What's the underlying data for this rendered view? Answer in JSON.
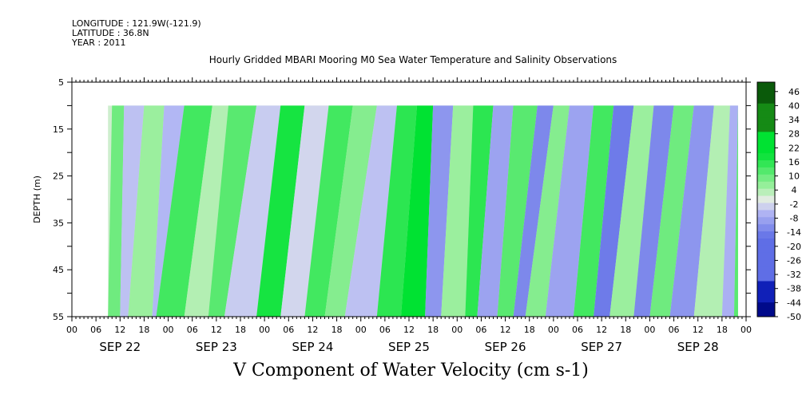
{
  "header": {
    "longitude": "LONGITUDE : 121.9W(-121.9)",
    "latitude": "LATITUDE : 36.8N",
    "year": "YEAR : 2011"
  },
  "bottom_title": "V Component of Water Velocity (cm s-1)",
  "chart_data": {
    "type": "heatmap",
    "title": "Hourly Gridded MBARI Mooring M0 Sea Water Temperature and Salinity Observations",
    "xlabel": "",
    "ylabel": "DEPTH (m)",
    "hour_ticks": [
      "00",
      "06",
      "12",
      "18",
      "00",
      "06",
      "12",
      "18",
      "00",
      "06",
      "12",
      "18",
      "00",
      "06",
      "12",
      "18",
      "00",
      "06",
      "12",
      "18",
      "00",
      "06",
      "12",
      "18",
      "00",
      "06",
      "12",
      "18",
      "00"
    ],
    "date_labels": [
      "SEP 22",
      "SEP 23",
      "SEP 24",
      "SEP 25",
      "SEP 26",
      "SEP 27",
      "SEP 28"
    ],
    "xlim_hours": [
      0,
      168
    ],
    "data_start_hour": 9,
    "data_end_hour": 166,
    "y_ticks": [
      5,
      15,
      25,
      35,
      45,
      55
    ],
    "ylim": [
      5,
      55
    ],
    "data_depth_range": [
      10,
      55
    ],
    "colorbar": {
      "labels": [
        "46",
        "40",
        "34",
        "28",
        "22",
        "16",
        "10",
        "4",
        "-2",
        "-8",
        "-14",
        "-20",
        "-26",
        "-32",
        "-38",
        "-44",
        "-50"
      ],
      "range": [
        -50,
        50
      ],
      "step": 3
    },
    "colors": {
      "positive_strong": "#00e232",
      "positive_light": "#a6f0a6",
      "near_zero": "#e8ece8",
      "negative_light": "#b4b8f4",
      "negative_strong": "#5f6ee6"
    },
    "bands": [
      {
        "hour_top": 10,
        "hour_bottom": 6,
        "value": 10
      },
      {
        "hour_top": 13,
        "hour_bottom": 12,
        "value": -4
      },
      {
        "hour_top": 18,
        "hour_bottom": 14,
        "value": 6
      },
      {
        "hour_top": 23,
        "hour_bottom": 20,
        "value": -5
      },
      {
        "hour_top": 28,
        "hour_bottom": 21,
        "value": 14
      },
      {
        "hour_top": 35,
        "hour_bottom": 28,
        "value": 4
      },
      {
        "hour_top": 39,
        "hour_bottom": 34,
        "value": 12
      },
      {
        "hour_top": 46,
        "hour_bottom": 38,
        "value": -3
      },
      {
        "hour_top": 52,
        "hour_bottom": 46,
        "value": 18
      },
      {
        "hour_top": 58,
        "hour_bottom": 52,
        "value": -2
      },
      {
        "hour_top": 64,
        "hour_bottom": 58,
        "value": 14
      },
      {
        "hour_top": 70,
        "hour_bottom": 63,
        "value": 8
      },
      {
        "hour_top": 76,
        "hour_bottom": 68,
        "value": -4
      },
      {
        "hour_top": 81,
        "hour_bottom": 76,
        "value": 16
      },
      {
        "hour_top": 86,
        "hour_bottom": 82,
        "value": 20
      },
      {
        "hour_top": 90,
        "hour_bottom": 88,
        "value": -10
      },
      {
        "hour_top": 95,
        "hour_bottom": 92,
        "value": 6
      },
      {
        "hour_top": 100,
        "hour_bottom": 98,
        "value": 16
      },
      {
        "hour_top": 105,
        "hour_bottom": 101,
        "value": -8
      },
      {
        "hour_top": 110,
        "hour_bottom": 106,
        "value": 12
      },
      {
        "hour_top": 116,
        "hour_bottom": 110,
        "value": -12
      },
      {
        "hour_top": 120,
        "hour_bottom": 113,
        "value": 8
      },
      {
        "hour_top": 124,
        "hour_bottom": 118,
        "value": -8
      },
      {
        "hour_top": 130,
        "hour_bottom": 125,
        "value": 14
      },
      {
        "hour_top": 135,
        "hour_bottom": 130,
        "value": -14
      },
      {
        "hour_top": 140,
        "hour_bottom": 134,
        "value": 6
      },
      {
        "hour_top": 145,
        "hour_bottom": 140,
        "value": -12
      },
      {
        "hour_top": 150,
        "hour_bottom": 144,
        "value": 10
      },
      {
        "hour_top": 155,
        "hour_bottom": 149,
        "value": -10
      },
      {
        "hour_top": 160,
        "hour_bottom": 155,
        "value": 4
      },
      {
        "hour_top": 164,
        "hour_bottom": 162,
        "value": -6
      },
      {
        "hour_top": 166,
        "hour_bottom": 165,
        "value": 12
      }
    ]
  }
}
